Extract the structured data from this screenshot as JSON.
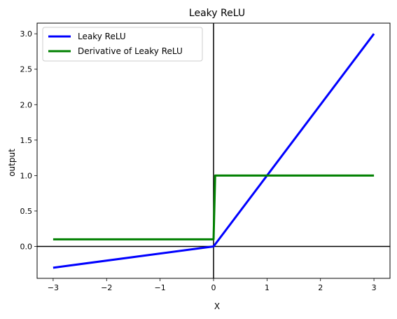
{
  "chart_data": {
    "type": "line",
    "title": "Leaky ReLU",
    "xlabel": "X",
    "ylabel": "output",
    "xlim": [
      -3.3,
      3.3
    ],
    "ylim": [
      -0.45,
      3.15
    ],
    "xticks": [
      -3,
      -2,
      -1,
      0,
      1,
      2,
      3
    ],
    "xtick_labels": [
      "−3",
      "−2",
      "−1",
      "0",
      "1",
      "2",
      "3"
    ],
    "yticks": [
      0.0,
      0.5,
      1.0,
      1.5,
      2.0,
      2.5,
      3.0
    ],
    "ytick_labels": [
      "0.0",
      "0.5",
      "1.0",
      "1.5",
      "2.0",
      "2.5",
      "3.0"
    ],
    "grid": false,
    "legend_position": "top-left",
    "reference_lines": {
      "x": 0,
      "y": 0,
      "color": "#000000"
    },
    "series": [
      {
        "name": "Leaky ReLU",
        "color": "#0000ff",
        "x": [
          -3,
          0,
          3
        ],
        "y": [
          -0.3,
          0,
          3
        ]
      },
      {
        "name": "Derivative of Leaky ReLU",
        "color": "#008000",
        "x": [
          -3,
          0,
          0.03,
          3
        ],
        "y": [
          0.1,
          0.1,
          1,
          1
        ]
      }
    ]
  }
}
